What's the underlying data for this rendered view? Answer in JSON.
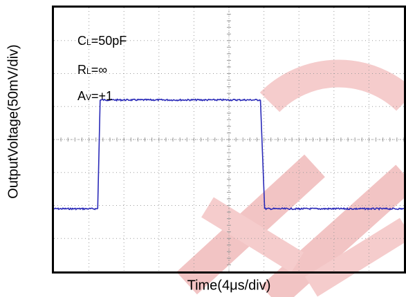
{
  "colors": {
    "trace": "#2a2ab8",
    "grid": "#9a9a9a",
    "watermark": "#f2c6c6"
  },
  "annotations": [
    {
      "main": "C",
      "sub": "L",
      "rest": "=50pF"
    },
    {
      "main": "R",
      "sub": "L",
      "rest": "=∞"
    },
    {
      "main": "A",
      "sub": "V",
      "rest": "=+1"
    }
  ],
  "chart_data": {
    "type": "line",
    "title": "",
    "xlabel": "Time(4μs/div)",
    "ylabel": "OutputVoltage(50mV/div)",
    "xlim": [
      0,
      10
    ],
    "ylim": [
      0,
      8
    ],
    "grid": true,
    "x_divisions": 10,
    "y_divisions": 8,
    "series": [
      {
        "x": [
          0,
          0.55,
          1.25,
          1.32,
          5.9,
          6.02,
          7.0,
          10
        ],
        "y": [
          1.9,
          1.9,
          1.9,
          5.2,
          5.2,
          1.9,
          1.9,
          1.9
        ]
      }
    ]
  }
}
